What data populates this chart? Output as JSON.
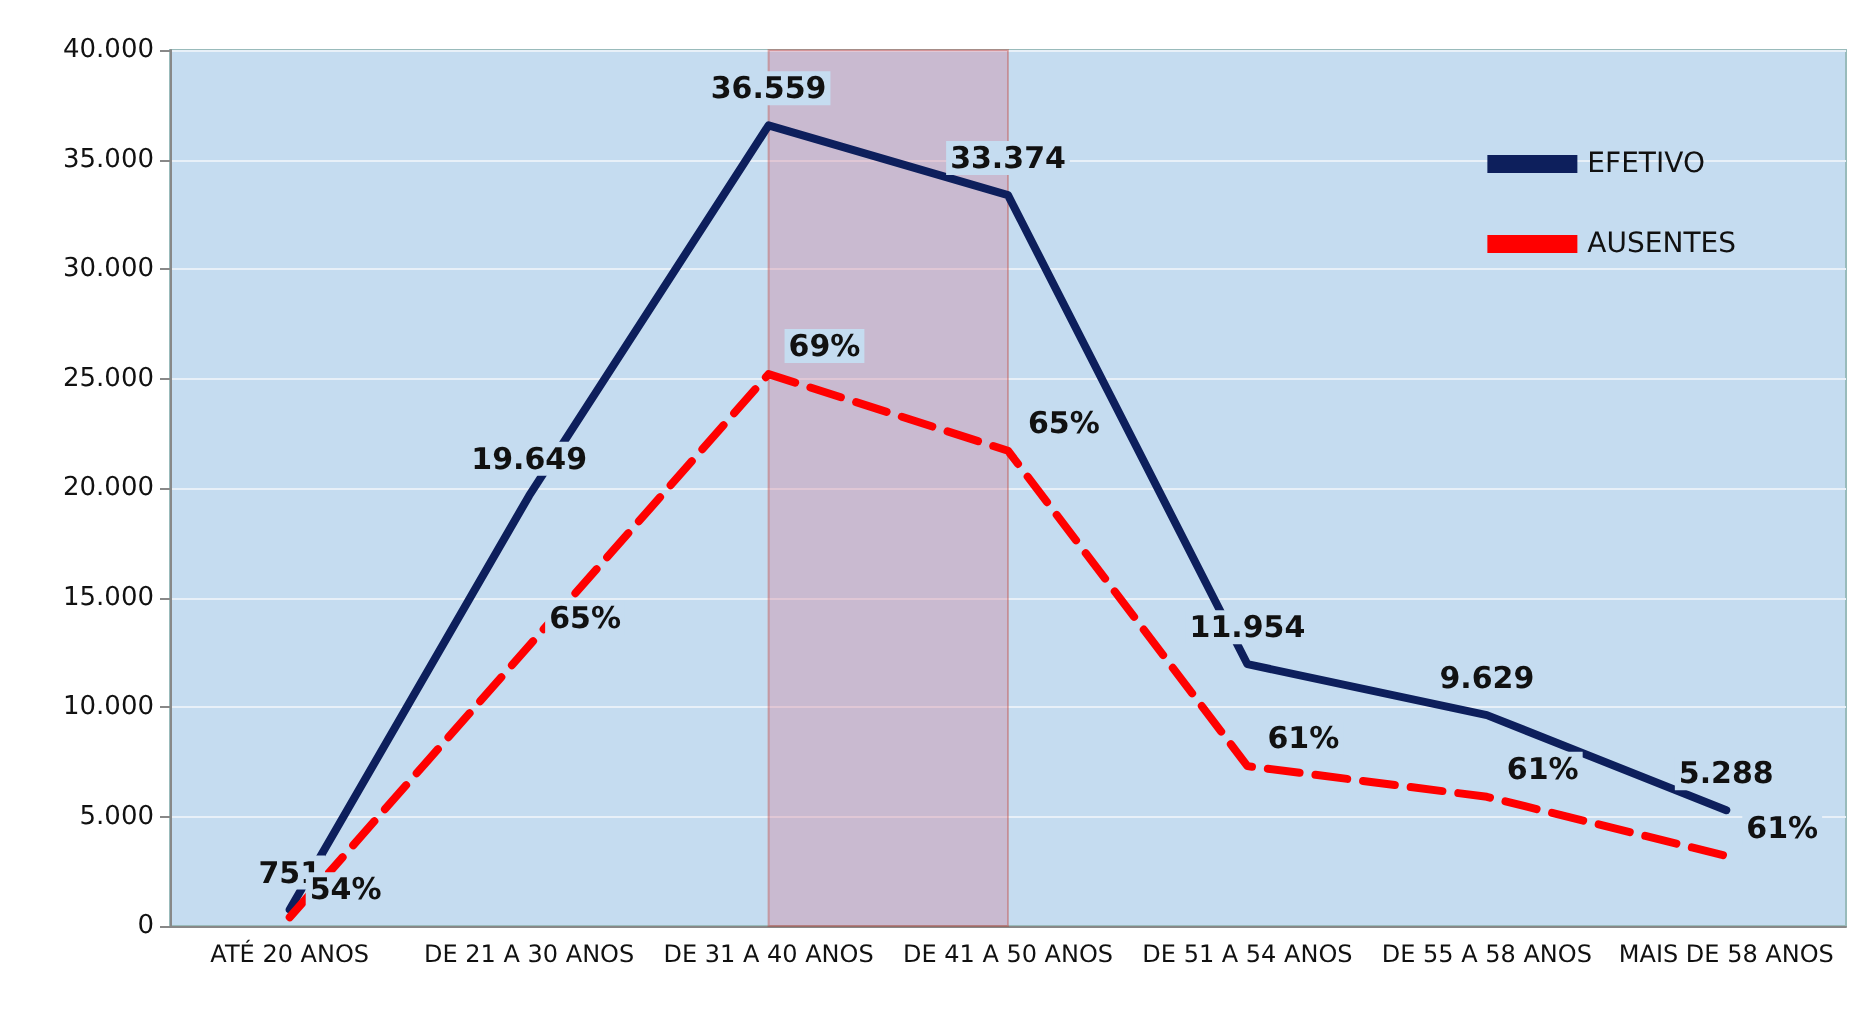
{
  "chart_data": {
    "type": "line",
    "categories": [
      "ATÉ 20 ANOS",
      "DE 21 A 30 ANOS",
      "DE 31 A 40 ANOS",
      "DE 41 A 50 ANOS",
      "DE 51 A 54 ANOS",
      "DE 55 A 58 ANOS",
      "MAIS DE 58 ANOS"
    ],
    "series": [
      {
        "name": "EFETIVO",
        "color": "#0d1f5c",
        "line_style": "solid",
        "values": [
          751,
          19649,
          36559,
          33374,
          11954,
          9629,
          5288
        ],
        "value_labels": [
          "751",
          "19.649",
          "36.559",
          "33.374",
          "11.954",
          "9.629",
          "5.288"
        ]
      },
      {
        "name": "AUSENTES",
        "color": "#ff0000",
        "line_style": "dashed",
        "values": [
          400,
          12800,
          25200,
          21700,
          7300,
          5900,
          3200
        ]
      }
    ],
    "annotations": [
      {
        "text": "54%",
        "x": "ATÉ 20 ANOS",
        "y": 400
      },
      {
        "text": "65%",
        "x": "DE 21 A 30 ANOS",
        "y": 12800
      },
      {
        "text": "69%",
        "x": "DE 31 A 40 ANOS",
        "y": 25200
      },
      {
        "text": "65%",
        "x": "DE 41 A 50 ANOS",
        "y": 21700
      },
      {
        "text": "61%",
        "x": "DE 51 A 54 ANOS",
        "y": 7300
      },
      {
        "text": "61%",
        "x": "DE 55 A 58 ANOS",
        "y": 5900
      },
      {
        "text": "61%",
        "x": "MAIS DE 58 ANOS",
        "y": 3200
      }
    ],
    "ylim": [
      0,
      40000
    ],
    "yticks": [
      0,
      {
        "value": 5000,
        "label": "5.000"
      },
      {
        "value": 10000,
        "label": "10.000"
      },
      {
        "value": 15000,
        "label": "15.000"
      },
      {
        "value": 20000,
        "label": "20.000"
      },
      {
        "value": 25000,
        "label": "25.000"
      },
      {
        "value": 30000,
        "label": "30.000"
      },
      {
        "value": 35000,
        "label": "35.000"
      },
      {
        "value": 40000,
        "label": "40.000"
      }
    ],
    "grid": "y",
    "legend": "top right",
    "marker": "none",
    "bands": [
      {
        "axis": "x",
        "from": "DE 31 A 40 ANOS",
        "to": "DE 41 A 50 ANOS",
        "color": "#d07a96"
      }
    ]
  }
}
